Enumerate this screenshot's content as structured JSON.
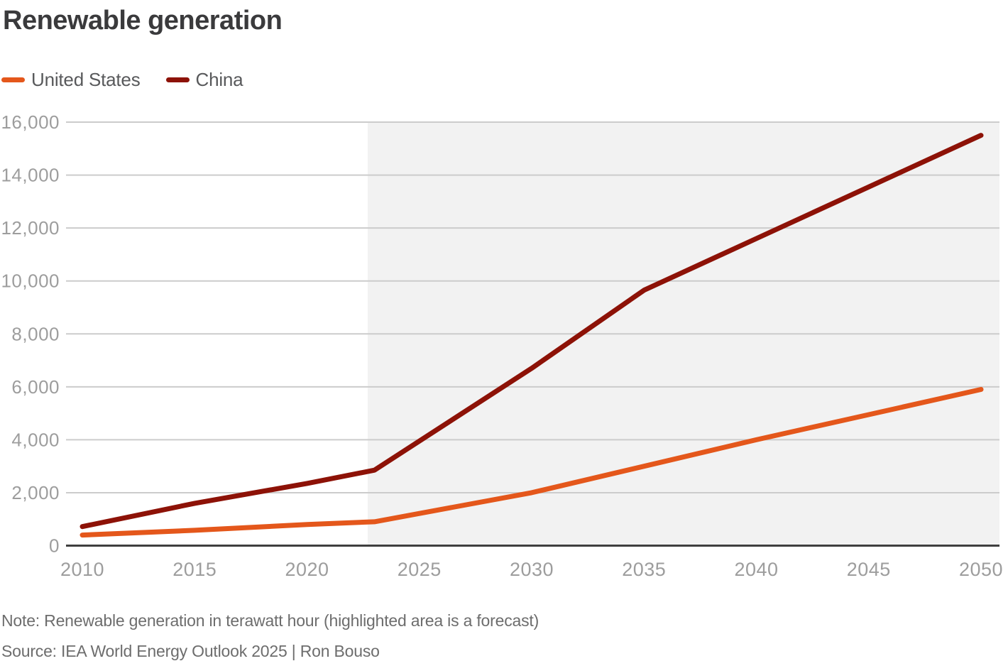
{
  "page": {
    "title": "Renewable generation",
    "note": "Note: Renewable generation in terawatt hour (highlighted area is a forecast)",
    "source": "Source: IEA World Energy Outlook 2025 | Ron Bouso"
  },
  "legend": {
    "items": [
      {
        "label": "United States",
        "color": "#e4571b"
      },
      {
        "label": "China",
        "color": "#8d1207"
      }
    ]
  },
  "colors": {
    "title": "#3a3a3c",
    "legend_text": "#58595b",
    "axis_label": "#9d9d9d",
    "grid": "#cccccc",
    "axis_line": "#3f3f3f",
    "forecast_bg": "#f2f2f2",
    "note_text": "#6d6d6d"
  },
  "chart_data": {
    "type": "line",
    "title": "Renewable generation",
    "unit": "terawatt hour",
    "x": [
      2010,
      2015,
      2020,
      2023,
      2030,
      2035,
      2040,
      2045,
      2050
    ],
    "series": [
      {
        "name": "United States",
        "color": "#e4571b",
        "values": [
          400,
          580,
          800,
          900,
          2000,
          3000,
          4000,
          4950,
          5900
        ]
      },
      {
        "name": "China",
        "color": "#8d1207",
        "values": [
          720,
          1600,
          2350,
          2850,
          6700,
          9650,
          11600,
          13550,
          15500
        ]
      }
    ],
    "xlim": [
      2010,
      2050
    ],
    "ylim": [
      0,
      16000
    ],
    "ytick_interval": 2000,
    "xticks": [
      2010,
      2015,
      2020,
      2025,
      2030,
      2035,
      2040,
      2045,
      2050
    ],
    "forecast_start": 2022.7,
    "forecast_label": "highlighted area is a forecast",
    "grid": true,
    "legend_position": "top-left"
  }
}
